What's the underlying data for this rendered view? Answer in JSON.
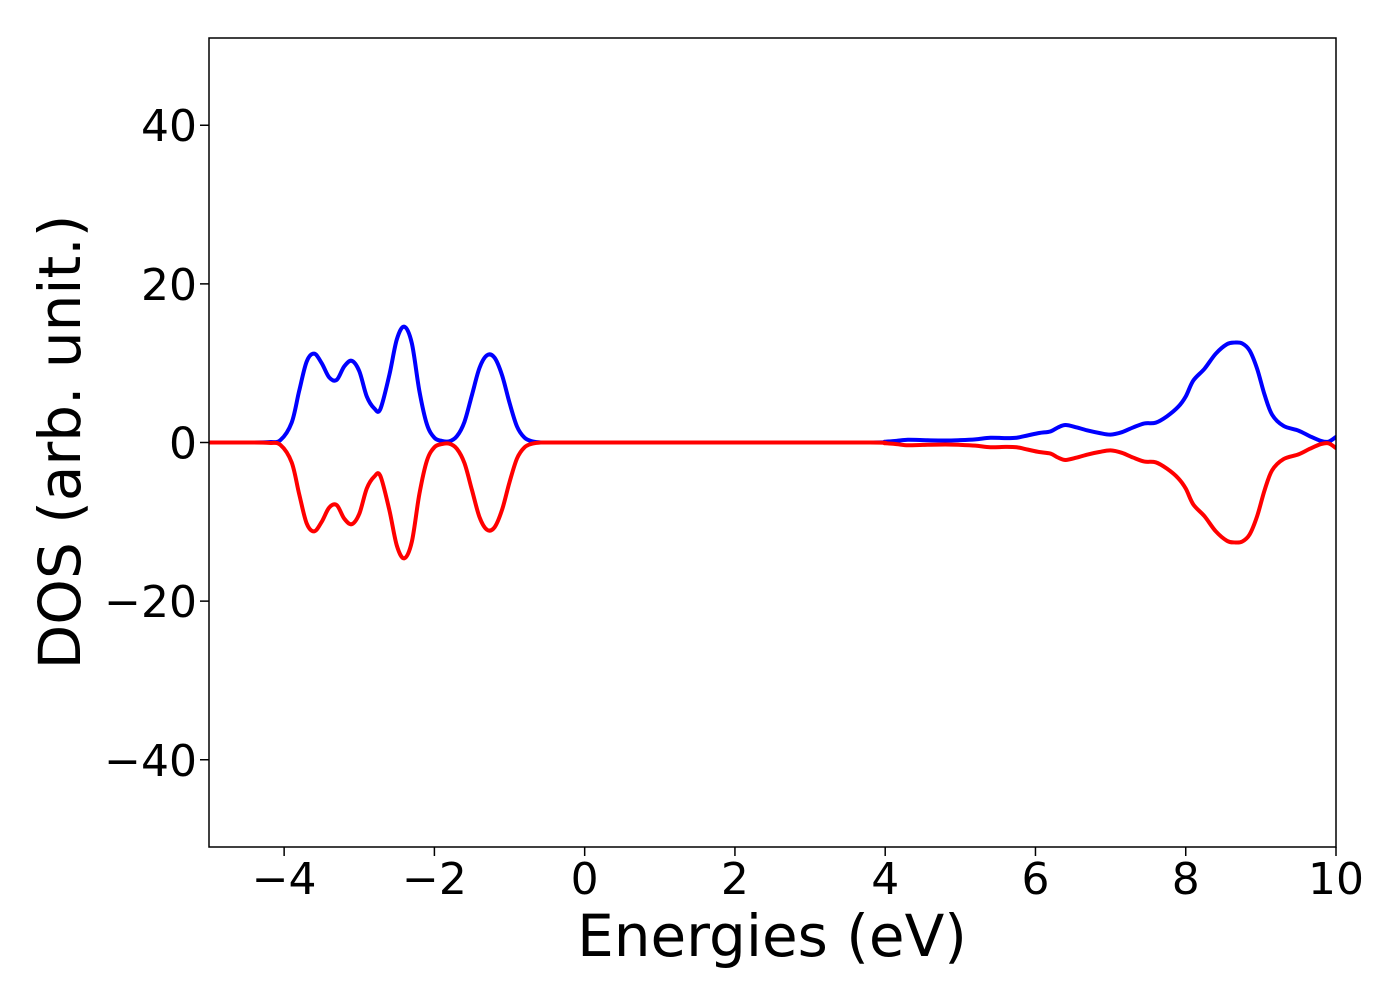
{
  "chart_data": {
    "type": "line",
    "title": "",
    "xlabel": "Energies (eV)",
    "ylabel": "DOS (arb. unit.)",
    "xlim": [
      -5,
      10
    ],
    "ylim": [
      -51,
      51
    ],
    "xticks": [
      -4,
      -2,
      0,
      2,
      4,
      6,
      8,
      10
    ],
    "xtick_labels": [
      "−4",
      "−2",
      "0",
      "2",
      "4",
      "6",
      "8",
      "10"
    ],
    "yticks": [
      40,
      20,
      0,
      -20,
      -40
    ],
    "ytick_labels": [
      "40",
      "20",
      "0",
      "−20",
      "−40"
    ],
    "grid": false,
    "legend": "none",
    "series": [
      {
        "color": "#0000ff",
        "x": [
          -5,
          -4.5,
          -4.2,
          -4.05,
          -3.9,
          -3.8,
          -3.7,
          -3.6,
          -3.5,
          -3.4,
          -3.3,
          -3.2,
          -3.1,
          -3.0,
          -2.9,
          -2.8,
          -2.72,
          -2.6,
          -2.5,
          -2.4,
          -2.3,
          -2.2,
          -2.1,
          -2.0,
          -1.9,
          -1.8,
          -1.7,
          -1.6,
          -1.5,
          -1.4,
          -1.3,
          -1.2,
          -1.1,
          -1.0,
          -0.9,
          -0.8,
          -0.7,
          -0.6,
          -0.5,
          0,
          2,
          3.8,
          4.0,
          4.15,
          4.3,
          4.5,
          4.8,
          5.0,
          5.2,
          5.4,
          5.6,
          5.75,
          5.9,
          6.05,
          6.2,
          6.3,
          6.4,
          6.55,
          6.7,
          6.85,
          7.0,
          7.15,
          7.3,
          7.45,
          7.6,
          7.75,
          7.9,
          8.0,
          8.1,
          8.25,
          8.4,
          8.55,
          8.65,
          8.75,
          8.85,
          8.95,
          9.05,
          9.15,
          9.3,
          9.5,
          9.65,
          9.8,
          9.9,
          10
        ],
        "y": [
          0,
          0,
          0.05,
          0.3,
          2.5,
          6.5,
          10.2,
          11.2,
          10.0,
          8.2,
          7.9,
          9.6,
          10.3,
          9.0,
          5.8,
          4.3,
          4.2,
          8.5,
          13.0,
          14.6,
          12.5,
          6.5,
          2.3,
          0.6,
          0.2,
          0.15,
          0.8,
          2.6,
          6.0,
          9.4,
          11.0,
          10.7,
          8.5,
          5.0,
          2.0,
          0.6,
          0.15,
          0.02,
          0,
          0,
          0,
          0,
          0.1,
          0.2,
          0.35,
          0.3,
          0.25,
          0.3,
          0.4,
          0.6,
          0.55,
          0.6,
          0.9,
          1.2,
          1.4,
          1.9,
          2.2,
          1.9,
          1.5,
          1.2,
          1.0,
          1.3,
          1.9,
          2.4,
          2.5,
          3.3,
          4.5,
          5.8,
          7.8,
          9.3,
          11.2,
          12.4,
          12.6,
          12.5,
          11.6,
          9.3,
          6.0,
          3.5,
          2.1,
          1.5,
          0.8,
          0.2,
          0.1,
          0.7
        ]
      },
      {
        "color": "#ff0000",
        "x": [
          -5,
          -4.5,
          -4.2,
          -4.05,
          -3.9,
          -3.8,
          -3.7,
          -3.6,
          -3.5,
          -3.4,
          -3.3,
          -3.2,
          -3.1,
          -3.0,
          -2.9,
          -2.8,
          -2.72,
          -2.6,
          -2.5,
          -2.4,
          -2.3,
          -2.2,
          -2.1,
          -2.0,
          -1.9,
          -1.8,
          -1.7,
          -1.6,
          -1.5,
          -1.4,
          -1.3,
          -1.2,
          -1.1,
          -1.0,
          -0.9,
          -0.8,
          -0.7,
          -0.6,
          -0.5,
          0,
          2,
          3.8,
          4.0,
          4.15,
          4.3,
          4.5,
          4.8,
          5.0,
          5.2,
          5.4,
          5.6,
          5.75,
          5.9,
          6.05,
          6.2,
          6.3,
          6.4,
          6.55,
          6.7,
          6.85,
          7.0,
          7.15,
          7.3,
          7.45,
          7.6,
          7.75,
          7.9,
          8.0,
          8.1,
          8.25,
          8.4,
          8.55,
          8.65,
          8.75,
          8.85,
          8.95,
          9.05,
          9.15,
          9.3,
          9.5,
          9.65,
          9.8,
          9.9,
          10
        ],
        "y": [
          0,
          0,
          -0.05,
          -0.3,
          -2.5,
          -6.5,
          -10.2,
          -11.2,
          -10.0,
          -8.2,
          -7.9,
          -9.6,
          -10.3,
          -9.0,
          -5.8,
          -4.3,
          -4.2,
          -8.5,
          -13.0,
          -14.6,
          -12.5,
          -6.5,
          -2.3,
          -0.6,
          -0.2,
          -0.15,
          -0.8,
          -2.6,
          -6.0,
          -9.4,
          -11.0,
          -10.7,
          -8.5,
          -5.0,
          -2.0,
          -0.6,
          -0.15,
          -0.02,
          0,
          0,
          0,
          0,
          -0.1,
          -0.2,
          -0.35,
          -0.3,
          -0.25,
          -0.3,
          -0.4,
          -0.6,
          -0.55,
          -0.6,
          -0.9,
          -1.2,
          -1.4,
          -1.9,
          -2.2,
          -1.9,
          -1.5,
          -1.2,
          -1.0,
          -1.3,
          -1.9,
          -2.4,
          -2.5,
          -3.3,
          -4.5,
          -5.8,
          -7.8,
          -9.3,
          -11.2,
          -12.4,
          -12.6,
          -12.5,
          -11.6,
          -9.3,
          -6.0,
          -3.5,
          -2.1,
          -1.5,
          -0.8,
          -0.2,
          -0.1,
          -0.7
        ]
      }
    ]
  }
}
